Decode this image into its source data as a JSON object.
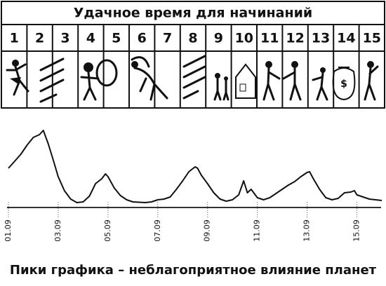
{
  "table": {
    "title": "Удачное время для начинаний",
    "columns": [
      "1",
      "2",
      "3",
      "4",
      "5",
      "6",
      "7",
      "8",
      "9",
      "10",
      "11",
      "12",
      "13",
      "14",
      "15"
    ]
  },
  "chart_data": {
    "type": "line",
    "caption": "Пики графика – неблагоприятное влияние планет",
    "color": "#111111",
    "x": [
      1,
      1.25,
      1.5,
      1.75,
      2,
      2.25,
      2.4,
      2.6,
      2.8,
      3,
      3.25,
      3.5,
      3.75,
      4,
      4.25,
      4.5,
      4.75,
      4.9,
      5,
      5.25,
      5.5,
      5.75,
      6,
      6.5,
      6.75,
      7,
      7.25,
      7.5,
      7.75,
      8,
      8.25,
      8.5,
      8.6,
      8.75,
      9,
      9.25,
      9.5,
      9.75,
      10,
      10.25,
      10.45,
      10.6,
      10.75,
      11,
      11.25,
      11.5,
      11.75,
      12,
      12.25,
      12.5,
      12.75,
      13,
      13.1,
      13.25,
      13.5,
      13.75,
      14,
      14.25,
      14.5,
      14.75,
      14.9,
      15,
      15.25,
      15.5,
      15.75,
      16
    ],
    "values": [
      56,
      66,
      76,
      89,
      100,
      104,
      110,
      91,
      68,
      44,
      24,
      12,
      7,
      8,
      16,
      34,
      41,
      48,
      44,
      28,
      17,
      11,
      8,
      7,
      8,
      11,
      12,
      15,
      26,
      38,
      51,
      58,
      56,
      46,
      34,
      21,
      12,
      9,
      11,
      18,
      38,
      21,
      26,
      14,
      11,
      14,
      20,
      26,
      32,
      37,
      44,
      50,
      51,
      41,
      26,
      14,
      11,
      13,
      21,
      22,
      24,
      18,
      15,
      12,
      11,
      10
    ],
    "xlim": [
      1,
      16
    ],
    "xticks": [
      {
        "value": 1,
        "label": "01.09"
      },
      {
        "value": 3,
        "label": "03.09"
      },
      {
        "value": 5,
        "label": "05.09"
      },
      {
        "value": 7,
        "label": "07.09"
      },
      {
        "value": 9,
        "label": "09.09"
      },
      {
        "value": 11,
        "label": "11.09"
      },
      {
        "value": 13,
        "label": "13.09"
      },
      {
        "value": 15,
        "label": "15.09"
      }
    ]
  }
}
